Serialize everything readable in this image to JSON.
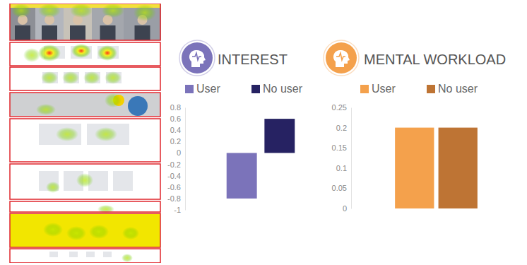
{
  "chart_data": [
    {
      "type": "bar",
      "title": "INTEREST",
      "categories": [
        null
      ],
      "series": [
        {
          "name": "User",
          "color": "#7b73ba",
          "values": [
            -0.8
          ]
        },
        {
          "name": "No user",
          "color": "#262262",
          "values": [
            0.6
          ]
        }
      ],
      "ylim": [
        -1,
        0.8
      ],
      "yticks": [
        -1,
        -0.8,
        -0.6,
        -0.4,
        -0.2,
        0,
        0.2,
        0.4,
        0.6,
        0.8
      ],
      "grid": false,
      "legend": "top"
    },
    {
      "type": "bar",
      "title": "MENTAL WORKLOAD",
      "categories": [
        null
      ],
      "series": [
        {
          "name": "User",
          "color": "#f4a14c",
          "values": [
            0.2
          ]
        },
        {
          "name": "No user",
          "color": "#be7434",
          "values": [
            0.2
          ]
        }
      ],
      "ylim": [
        0,
        0.25
      ],
      "yticks": [
        0,
        0.05,
        0.1,
        0.15,
        0.2,
        0.25
      ],
      "grid": false,
      "legend": "top"
    }
  ]
}
